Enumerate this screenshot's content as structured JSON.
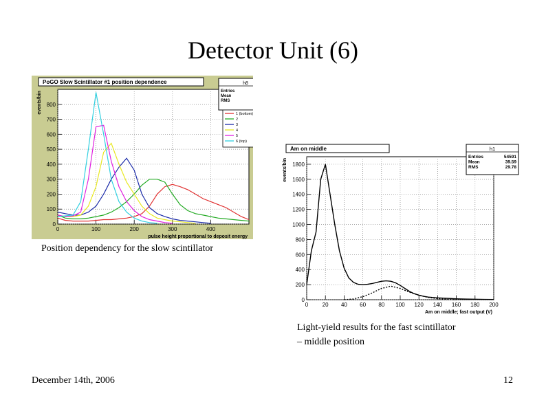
{
  "slide": {
    "title": "Detector Unit (6)",
    "caption_left": "Position dependency for the slow scintillator",
    "caption_right_line1": "Light-yield results for the fast scintillator",
    "caption_right_line2": "– middle position",
    "footer_date": "December 14th, 2006",
    "page_number": "12"
  },
  "colors": {
    "slow_panel_bg": "#e8e2a8",
    "slow_frame_bg": "#c9cc92",
    "fast_panel_bg": "#ffffff"
  },
  "chart_data": [
    {
      "type": "line",
      "title": "PoGO Slow Scintillator #1 position dependence",
      "xlabel": "pulse height proportional to deposit energy",
      "ylabel": "events/bin",
      "xlim": [
        0,
        500
      ],
      "ylim": [
        0,
        900
      ],
      "x_ticks": [
        "0",
        "100",
        "200",
        "300",
        "400"
      ],
      "y_ticks": [
        "0",
        "100",
        "200",
        "300",
        "400",
        "500",
        "600",
        "700",
        "800"
      ],
      "grid": true,
      "stats_box": {
        "name": "h8",
        "rows": [
          [
            "Entries",
            "22100"
          ],
          [
            "Mean",
            "96.88"
          ],
          [
            "RMS",
            "34.58"
          ]
        ]
      },
      "legend_placement": "top-right",
      "series": [
        {
          "name": "1 (bottom)",
          "color": "#e03030",
          "x": [
            0,
            20,
            40,
            60,
            80,
            100,
            120,
            140,
            160,
            180,
            200,
            220,
            240,
            260,
            280,
            300,
            320,
            340,
            360,
            380,
            400,
            420,
            440,
            460,
            480,
            500
          ],
          "y": [
            40,
            25,
            20,
            20,
            20,
            25,
            30,
            30,
            35,
            40,
            50,
            70,
            120,
            200,
            250,
            265,
            250,
            230,
            200,
            170,
            150,
            130,
            110,
            80,
            50,
            30
          ]
        },
        {
          "name": "2",
          "color": "#22aa22",
          "x": [
            0,
            20,
            40,
            60,
            80,
            100,
            120,
            140,
            160,
            180,
            200,
            220,
            240,
            260,
            280,
            300,
            320,
            340,
            360,
            380,
            400,
            420,
            440,
            460,
            480,
            500
          ],
          "y": [
            60,
            40,
            35,
            35,
            40,
            50,
            60,
            80,
            110,
            150,
            200,
            260,
            300,
            300,
            280,
            200,
            130,
            90,
            70,
            60,
            50,
            40,
            35,
            30,
            25,
            20
          ]
        },
        {
          "name": "3",
          "color": "#1a2aa8",
          "x": [
            0,
            20,
            40,
            60,
            80,
            100,
            120,
            140,
            160,
            180,
            200,
            220,
            240,
            260,
            280,
            300,
            320,
            340,
            360,
            380,
            400
          ],
          "y": [
            80,
            70,
            60,
            60,
            80,
            120,
            200,
            300,
            380,
            440,
            360,
            200,
            110,
            70,
            50,
            35,
            25,
            20,
            15,
            10,
            5
          ]
        },
        {
          "name": "4",
          "color": "#e8e820",
          "x": [
            0,
            20,
            40,
            60,
            80,
            100,
            120,
            140,
            160,
            180,
            200,
            220,
            240,
            260,
            280,
            300,
            320,
            340,
            360
          ],
          "y": [
            60,
            50,
            50,
            60,
            120,
            250,
            480,
            540,
            400,
            280,
            200,
            120,
            70,
            40,
            30,
            20,
            15,
            10,
            5
          ]
        },
        {
          "name": "5",
          "color": "#e020e0",
          "x": [
            0,
            20,
            40,
            60,
            80,
            100,
            120,
            140,
            160,
            180,
            200,
            220,
            240,
            260,
            280,
            300
          ],
          "y": [
            60,
            50,
            55,
            80,
            300,
            650,
            660,
            420,
            250,
            150,
            90,
            50,
            30,
            20,
            10,
            5
          ]
        },
        {
          "name": "6 (top)",
          "color": "#30d0e0",
          "x": [
            0,
            20,
            40,
            60,
            80,
            100,
            120,
            140,
            160,
            180,
            200,
            220,
            240,
            260
          ],
          "y": [
            50,
            55,
            60,
            150,
            500,
            880,
            600,
            300,
            150,
            80,
            40,
            20,
            10,
            5
          ]
        }
      ]
    },
    {
      "type": "line",
      "title": "Am on middle",
      "xlabel": "Am on middle; fast output (V)",
      "ylabel": "events/bin",
      "xlim": [
        0,
        200
      ],
      "ylim": [
        0,
        1900
      ],
      "x_ticks": [
        "0",
        "20",
        "40",
        "60",
        "80",
        "100",
        "120",
        "140",
        "160",
        "180",
        "200"
      ],
      "y_ticks": [
        "0",
        "200",
        "400",
        "600",
        "800",
        "1000",
        "1200",
        "1400",
        "1600",
        "1800"
      ],
      "grid": true,
      "stats_box": {
        "name": "h1",
        "rows": [
          [
            "Entries",
            "54591"
          ],
          [
            "Mean",
            "39.59"
          ],
          [
            "RMS",
            "29.78"
          ]
        ]
      },
      "series": [
        {
          "color": "#000000",
          "x": [
            0,
            5,
            10,
            15,
            20,
            25,
            30,
            35,
            40,
            45,
            50,
            55,
            60,
            65,
            70,
            75,
            80,
            85,
            90,
            95,
            100,
            105,
            110,
            115,
            120,
            125,
            130,
            140,
            150,
            160,
            170,
            180,
            190,
            200
          ],
          "y": [
            200,
            650,
            900,
            1600,
            1800,
            1400,
            1000,
            650,
            420,
            290,
            230,
            205,
            200,
            205,
            215,
            230,
            245,
            250,
            245,
            225,
            190,
            150,
            110,
            80,
            60,
            45,
            35,
            25,
            18,
            12,
            8,
            6,
            4,
            3
          ]
        },
        {
          "color": "#000000",
          "dashed": true,
          "x": [
            40,
            50,
            60,
            70,
            80,
            90,
            100,
            110,
            120,
            130,
            140,
            150,
            160
          ],
          "y": [
            0,
            10,
            40,
            90,
            150,
            180,
            150,
            100,
            60,
            30,
            15,
            5,
            0
          ]
        }
      ]
    }
  ]
}
